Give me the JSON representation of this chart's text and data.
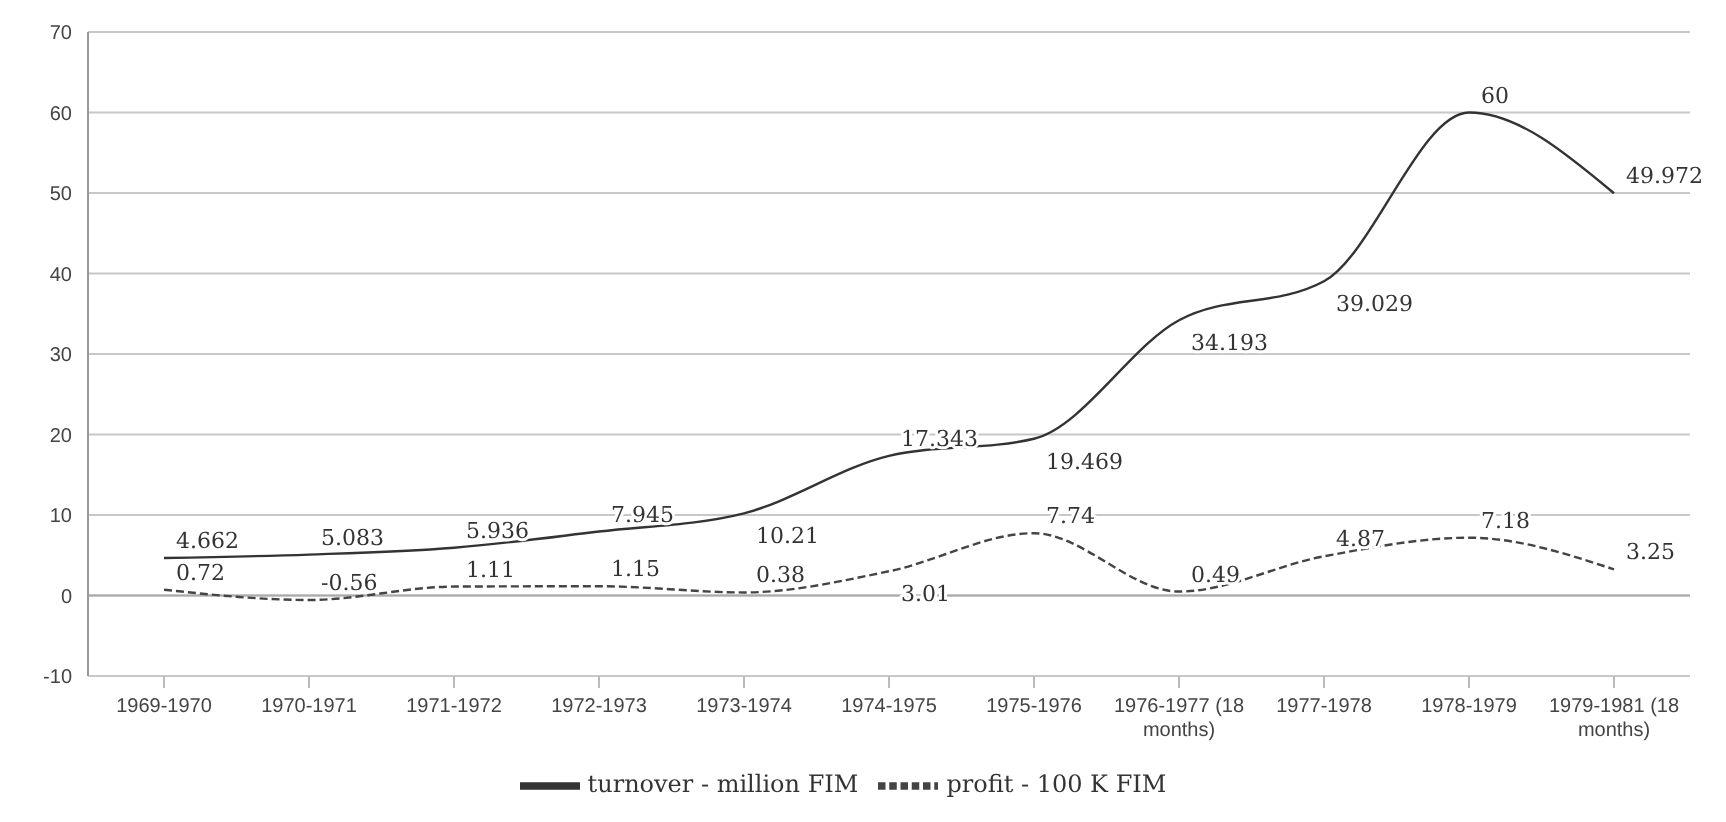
{
  "chart_data": {
    "type": "line",
    "categories": [
      "1969-1970",
      "1970-1971",
      "1971-1972",
      "1972-1973",
      "1973-1974",
      "1974-1975",
      "1975-1976",
      "1976-1977 (18 months)",
      "1977-1978",
      "1978-1979",
      "1979-1981 (18 months)"
    ],
    "series": [
      {
        "name": "turnover - million FIM",
        "color": "#333333",
        "line_style": "solid",
        "values": [
          4.662,
          5.083,
          5.936,
          7.945,
          10.21,
          17.343,
          19.469,
          34.193,
          39.029,
          60,
          49.972
        ]
      },
      {
        "name": "profit - 100 K FIM",
        "color": "#444444",
        "line_style": "dashed",
        "values": [
          0.72,
          -0.56,
          1.11,
          1.15,
          0.38,
          3.01,
          7.74,
          0.49,
          4.87,
          7.18,
          3.25
        ]
      }
    ],
    "ylim": [
      -10,
      70
    ],
    "yticks": [
      -10,
      0,
      10,
      20,
      30,
      40,
      50,
      60,
      70
    ],
    "grid": "y",
    "legend": "bottom",
    "marker": "none",
    "data_labels": true
  }
}
